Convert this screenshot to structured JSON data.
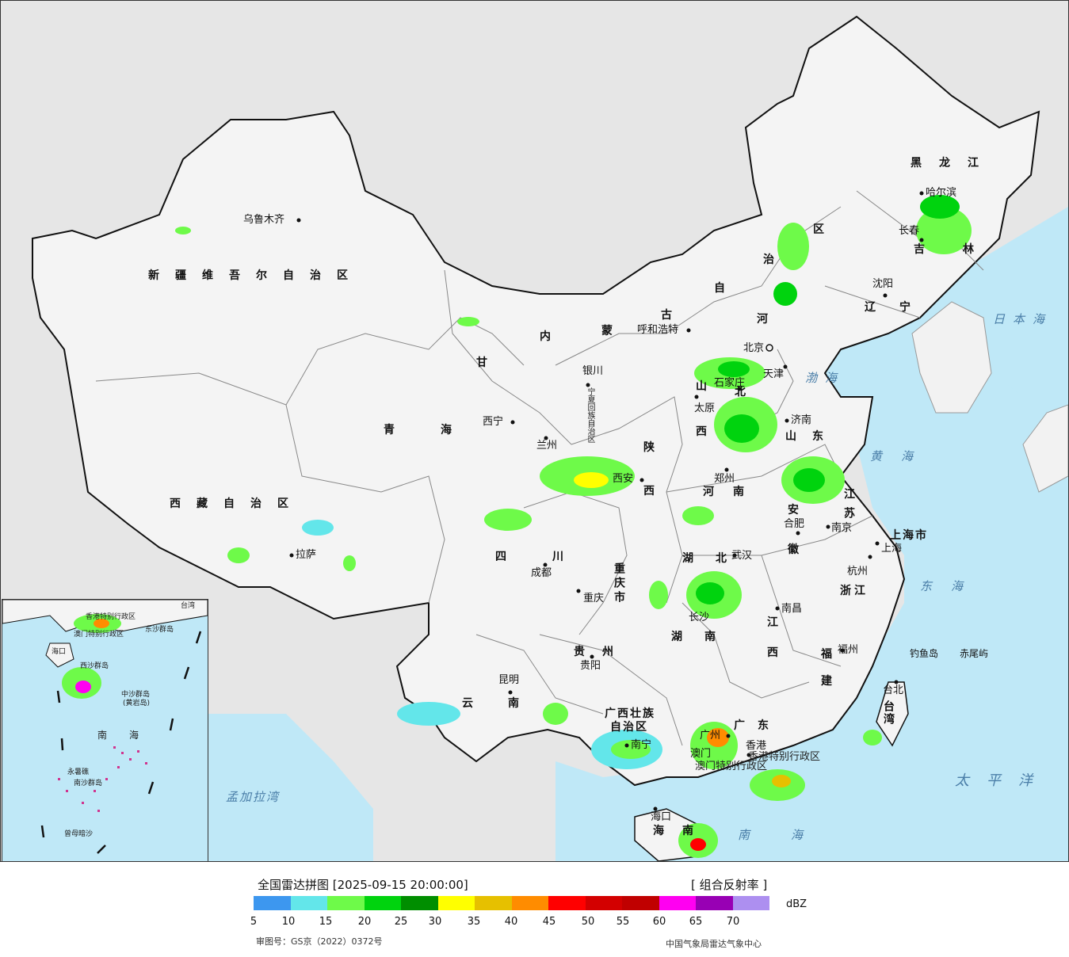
{
  "title": "全国雷达拼图 [2025-09-15 20:00:00]",
  "product": "[ 组合反射率 ]",
  "unit": "dBZ",
  "approval": "审图号：GS京（2022）0372号",
  "source": "中国气象局雷达气象中心",
  "legend": {
    "colors": [
      "#3d97ef",
      "#63e6ea",
      "#6efa49",
      "#00d30e",
      "#008e00",
      "#ffff00",
      "#e6c000",
      "#ff8c00",
      "#ff0000",
      "#d30000",
      "#c00000",
      "#ff00f1",
      "#9800b4",
      "#ad8ff0"
    ],
    "ticks": [
      "5",
      "10",
      "15",
      "20",
      "25",
      "30",
      "35",
      "40",
      "45",
      "50",
      "55",
      "60",
      "65",
      "70"
    ]
  },
  "colors": {
    "sea": "#bfe8f7",
    "land": "#f0f0f0",
    "outside": "#e6e6e6"
  },
  "provinces": [
    "新疆维吾尔自治区",
    "西藏自治区",
    "青海",
    "甘",
    "内",
    "蒙",
    "古",
    "自",
    "治",
    "区",
    "黑龙江",
    "吉林",
    "辽宁",
    "河",
    "北",
    "山",
    "西",
    "陕",
    "西",
    "四",
    "川",
    "重庆市",
    "贵州",
    "云",
    "南",
    "广西壮族",
    "自治区",
    "湖",
    "北",
    "湖",
    "南",
    "河南",
    "山东",
    "江苏",
    "安",
    "徽",
    "浙江",
    "江",
    "西",
    "福",
    "建",
    "广",
    "东",
    "海",
    "南",
    "台湾",
    "上海市",
    "宁夏回族自治区",
    "香港特别行政区",
    "澳门特别行政区"
  ],
  "cities": [
    "乌鲁木齐",
    "呼和浩特",
    "哈尔滨",
    "长春",
    "沈阳",
    "北京",
    "天津",
    "石家庄",
    "太原",
    "济南",
    "银川",
    "西宁",
    "兰州",
    "西安",
    "郑州",
    "合肥",
    "南京",
    "上海",
    "杭州",
    "武汉",
    "拉萨",
    "成都",
    "重庆",
    "贵阳",
    "昆明",
    "南昌",
    "福州",
    "长沙",
    "南宁",
    "广州",
    "香港",
    "澳门",
    "海口",
    "台北",
    "钓鱼岛",
    "赤尾屿"
  ],
  "seas": [
    "日本海",
    "渤海",
    "黄海",
    "东海",
    "太平洋",
    "南海",
    "孟加拉湾"
  ],
  "inset": {
    "labels": [
      "南",
      "海",
      "中沙群岛",
      "(黄岩岛)",
      "永暑礁",
      "南沙群岛",
      "曾母暗沙",
      "香港特别行政区",
      "澳门特别行政区",
      "东沙群岛",
      "西沙群岛",
      "台湾",
      "海口"
    ]
  }
}
